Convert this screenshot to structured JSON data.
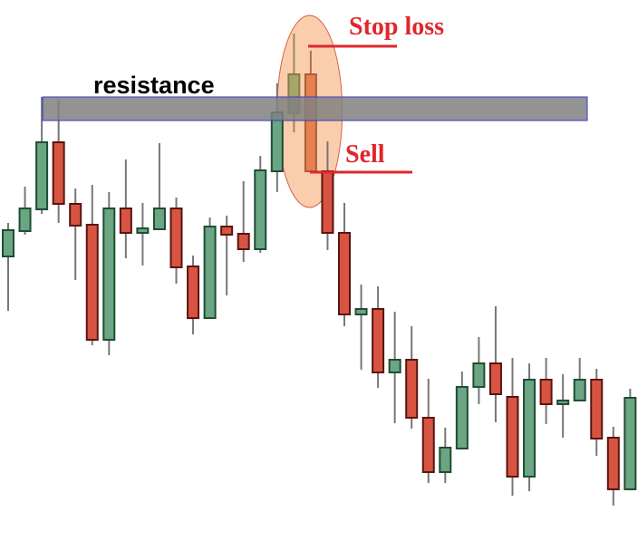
{
  "chart_data": {
    "type": "candlestick",
    "title": "",
    "xlabel": "",
    "ylabel": "",
    "axes_visible": false,
    "grid": false,
    "colors": {
      "bullish_fill": "#6aa584",
      "bullish_border": "#1f4d33",
      "bearish_fill": "#d75442",
      "bearish_border": "#5a1410",
      "wick": "#777777",
      "highlight_bullish": "#a8a46a",
      "highlight_bearish": "#e8804f",
      "resistance_band": "#808080",
      "resistance_border": "#3a3acc",
      "highlight_ellipse": "#f9c9a3",
      "annotation_red": "#e0262c"
    },
    "candles": [
      {
        "o": 317,
        "h": 354,
        "l": 257,
        "c": 346
      },
      {
        "o": 345,
        "h": 394,
        "l": 341,
        "c": 370
      },
      {
        "o": 369,
        "h": 493,
        "l": 364,
        "c": 443
      },
      {
        "o": 443,
        "h": 490,
        "l": 354,
        "c": 375
      },
      {
        "o": 375,
        "h": 392,
        "l": 291,
        "c": 351
      },
      {
        "o": 352,
        "h": 396,
        "l": 219,
        "c": 225
      },
      {
        "o": 225,
        "h": 388,
        "l": 208,
        "c": 370
      },
      {
        "o": 370,
        "h": 424,
        "l": 315,
        "c": 343
      },
      {
        "o": 343,
        "h": 376,
        "l": 307,
        "c": 348
      },
      {
        "o": 347,
        "h": 442,
        "l": 347,
        "c": 370
      },
      {
        "o": 370,
        "h": 382,
        "l": 287,
        "c": 305
      },
      {
        "o": 306,
        "h": 318,
        "l": 231,
        "c": 249
      },
      {
        "o": 249,
        "h": 360,
        "l": 249,
        "c": 350
      },
      {
        "o": 350,
        "h": 362,
        "l": 274,
        "c": 341
      },
      {
        "o": 342,
        "h": 400,
        "l": 311,
        "c": 325
      },
      {
        "o": 325,
        "h": 428,
        "l": 321,
        "c": 412
      },
      {
        "o": 411,
        "h": 508,
        "l": 388,
        "c": 476
      },
      {
        "o": 475,
        "h": 563,
        "l": 454,
        "c": 518,
        "highlight": true
      },
      {
        "o": 518,
        "h": 544,
        "l": 411,
        "c": 411,
        "highlight": true
      },
      {
        "o": 411,
        "h": 444,
        "l": 324,
        "c": 343
      },
      {
        "o": 343,
        "h": 376,
        "l": 240,
        "c": 253
      },
      {
        "o": 253,
        "h": 286,
        "l": 192,
        "c": 259
      },
      {
        "o": 259,
        "h": 284,
        "l": 172,
        "c": 189
      },
      {
        "o": 189,
        "h": 256,
        "l": 133,
        "c": 203
      },
      {
        "o": 203,
        "h": 240,
        "l": 127,
        "c": 139
      },
      {
        "o": 139,
        "h": 182,
        "l": 67,
        "c": 79
      },
      {
        "o": 79,
        "h": 128,
        "l": 67,
        "c": 106
      },
      {
        "o": 105,
        "h": 190,
        "l": 105,
        "c": 173
      },
      {
        "o": 173,
        "h": 228,
        "l": 154,
        "c": 199
      },
      {
        "o": 199,
        "h": 262,
        "l": 134,
        "c": 165
      },
      {
        "o": 162,
        "h": 205,
        "l": 53,
        "c": 74
      },
      {
        "o": 74,
        "h": 199,
        "l": 58,
        "c": 181
      },
      {
        "o": 181,
        "h": 205,
        "l": 132,
        "c": 154
      },
      {
        "o": 154,
        "h": 187,
        "l": 117,
        "c": 158
      },
      {
        "o": 158,
        "h": 205,
        "l": 158,
        "c": 181
      },
      {
        "o": 181,
        "h": 193,
        "l": 97,
        "c": 116
      },
      {
        "o": 117,
        "h": 129,
        "l": 42,
        "c": 60
      },
      {
        "o": 60,
        "h": 171,
        "l": 60,
        "c": 161
      }
    ],
    "resistance": {
      "label": "resistance",
      "upper": 493,
      "lower": 467
    },
    "stop_loss": {
      "label": "Stop loss",
      "price": 549
    },
    "sell": {
      "label": "Sell",
      "price": 410
    }
  }
}
